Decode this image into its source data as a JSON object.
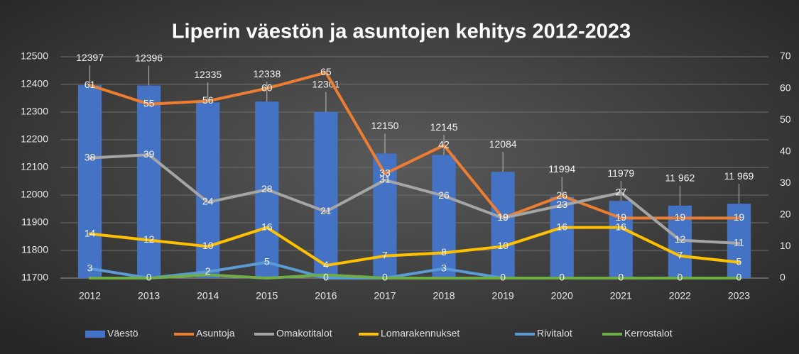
{
  "chart_data": {
    "type": "bar-line",
    "title": "Liperin väestön ja asuntojen kehitys 2012-2023",
    "categories": [
      "2012",
      "2013",
      "2014",
      "2015",
      "2016",
      "2017",
      "2018",
      "2019",
      "2020",
      "2021",
      "2022",
      "2023"
    ],
    "series": [
      {
        "name": "Väestö",
        "type": "bar",
        "color": "#4472c4",
        "axis": "y",
        "values": [
          12397,
          12396,
          12335,
          12338,
          12301,
          12150,
          12145,
          12084,
          11994,
          11979,
          11962,
          11969
        ],
        "value_labels": [
          "12397",
          "12396",
          "12335",
          "12338",
          "12301",
          "12150",
          "12145",
          "12084",
          "11994",
          "11979",
          "11 962",
          "11 969"
        ]
      },
      {
        "name": "Asuntoja",
        "type": "line",
        "color": "#ed7d31",
        "axis": "y2",
        "values": [
          61,
          55,
          56,
          60,
          65,
          33,
          42,
          19,
          26,
          19,
          19,
          19
        ]
      },
      {
        "name": "Omakotitalot",
        "type": "line",
        "color": "#a5a5a5",
        "axis": "y2",
        "values": [
          38,
          39,
          24,
          28,
          21,
          31,
          26,
          19,
          23,
          27,
          12,
          11
        ]
      },
      {
        "name": "Lomarakennukset",
        "type": "line",
        "color": "#ffc000",
        "axis": "y2",
        "values": [
          14,
          12,
          10,
          16,
          4,
          7,
          8,
          10,
          16,
          16,
          7,
          5
        ]
      },
      {
        "name": "Rivitalot",
        "type": "line",
        "color": "#5b9bd5",
        "axis": "y2",
        "values": [
          3,
          0,
          2,
          5,
          0,
          0,
          3,
          0,
          0,
          0,
          0,
          0
        ]
      },
      {
        "name": "Kerrostalot",
        "type": "line",
        "color": "#70ad47",
        "axis": "y2",
        "labels": false,
        "values": [
          0,
          0,
          1,
          0,
          1,
          0,
          0,
          0,
          0,
          0,
          0,
          0
        ]
      }
    ],
    "ylim": [
      11700,
      12500
    ],
    "yticks": [
      11700,
      11800,
      11900,
      12000,
      12100,
      12200,
      12300,
      12400,
      12500
    ],
    "y2lim": [
      0,
      70
    ],
    "y2ticks": [
      0,
      10,
      20,
      30,
      40,
      50,
      60,
      70
    ],
    "grid": true,
    "legend": "bottom"
  }
}
